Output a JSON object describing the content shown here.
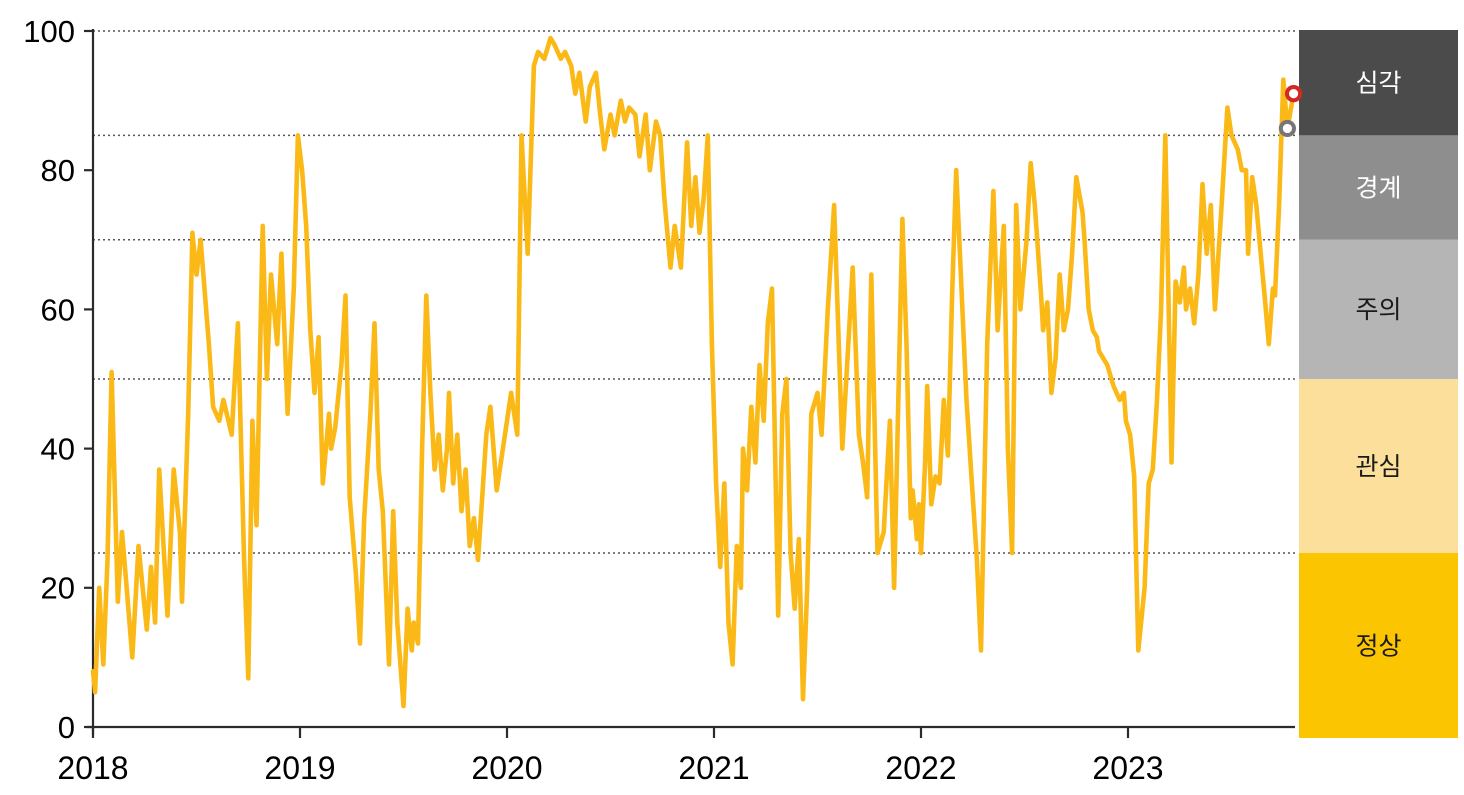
{
  "page": {
    "background": "#ffffff"
  },
  "chart_data": {
    "type": "line",
    "title": "",
    "x_axis": {
      "label": "",
      "ticks": [
        "2018",
        "2019",
        "2020",
        "2021",
        "2022",
        "2023"
      ],
      "tick_years": [
        2018,
        2019,
        2020,
        2021,
        2022,
        2023
      ],
      "range": [
        2018.0,
        2023.92
      ]
    },
    "y_axis": {
      "label": "",
      "ticks": [
        "0",
        "20",
        "40",
        "60",
        "80",
        "100"
      ],
      "tick_values": [
        0,
        20,
        40,
        60,
        80,
        100
      ],
      "range": [
        0,
        100
      ],
      "grid": "dotted"
    },
    "gridline_values": [
      25,
      50,
      70,
      85,
      100
    ],
    "axis_color": "#2b2b2b",
    "gridline_color": "#555555",
    "legend_position": "right-band",
    "alert_zones": [
      {
        "label": "심각",
        "min": 85,
        "max": 100,
        "color": "#4b4b4b",
        "text_color": "#ffffff"
      },
      {
        "label": "경계",
        "min": 70,
        "max": 85,
        "color": "#8e8e8e",
        "text_color": "#ffffff"
      },
      {
        "label": "주의",
        "min": 50,
        "max": 70,
        "color": "#b5b5b5",
        "text_color": "#1a1a1a"
      },
      {
        "label": "관심",
        "min": 25,
        "max": 50,
        "color": "#fbdf9b",
        "text_color": "#1a1a1a"
      },
      {
        "label": "정상",
        "min": 0,
        "max": 25,
        "color": "#fcc502",
        "text_color": "#1a1a1a"
      }
    ],
    "series": [
      {
        "name": "index",
        "color": "#fbb917",
        "points": [
          [
            2018.0,
            8
          ],
          [
            2018.01,
            5
          ],
          [
            2018.03,
            20
          ],
          [
            2018.05,
            9
          ],
          [
            2018.07,
            24
          ],
          [
            2018.09,
            51
          ],
          [
            2018.12,
            18
          ],
          [
            2018.14,
            28
          ],
          [
            2018.16,
            21
          ],
          [
            2018.19,
            10
          ],
          [
            2018.22,
            26
          ],
          [
            2018.26,
            14
          ],
          [
            2018.28,
            23
          ],
          [
            2018.3,
            15
          ],
          [
            2018.32,
            37
          ],
          [
            2018.36,
            16
          ],
          [
            2018.39,
            37
          ],
          [
            2018.42,
            28
          ],
          [
            2018.43,
            18
          ],
          [
            2018.46,
            45
          ],
          [
            2018.48,
            71
          ],
          [
            2018.5,
            65
          ],
          [
            2018.52,
            70
          ],
          [
            2018.56,
            55
          ],
          [
            2018.58,
            46
          ],
          [
            2018.61,
            44
          ],
          [
            2018.63,
            47
          ],
          [
            2018.67,
            42
          ],
          [
            2018.7,
            58
          ],
          [
            2018.73,
            24
          ],
          [
            2018.75,
            7
          ],
          [
            2018.77,
            44
          ],
          [
            2018.79,
            29
          ],
          [
            2018.82,
            72
          ],
          [
            2018.84,
            50
          ],
          [
            2018.86,
            65
          ],
          [
            2018.89,
            55
          ],
          [
            2018.91,
            68
          ],
          [
            2018.94,
            45
          ],
          [
            2018.97,
            63
          ],
          [
            2018.99,
            85
          ],
          [
            2019.01,
            80
          ],
          [
            2019.03,
            72
          ],
          [
            2019.05,
            57
          ],
          [
            2019.07,
            48
          ],
          [
            2019.09,
            56
          ],
          [
            2019.11,
            35
          ],
          [
            2019.14,
            45
          ],
          [
            2019.15,
            40
          ],
          [
            2019.17,
            43
          ],
          [
            2019.2,
            52
          ],
          [
            2019.22,
            62
          ],
          [
            2019.24,
            33
          ],
          [
            2019.27,
            22
          ],
          [
            2019.29,
            12
          ],
          [
            2019.31,
            30
          ],
          [
            2019.34,
            45
          ],
          [
            2019.36,
            58
          ],
          [
            2019.38,
            37
          ],
          [
            2019.4,
            31
          ],
          [
            2019.43,
            9
          ],
          [
            2019.45,
            31
          ],
          [
            2019.47,
            15
          ],
          [
            2019.5,
            3
          ],
          [
            2019.52,
            17
          ],
          [
            2019.54,
            11
          ],
          [
            2019.55,
            15
          ],
          [
            2019.57,
            12
          ],
          [
            2019.59,
            40
          ],
          [
            2019.61,
            62
          ],
          [
            2019.63,
            48
          ],
          [
            2019.65,
            37
          ],
          [
            2019.67,
            42
          ],
          [
            2019.69,
            34
          ],
          [
            2019.71,
            40
          ],
          [
            2019.72,
            48
          ],
          [
            2019.74,
            35
          ],
          [
            2019.76,
            42
          ],
          [
            2019.78,
            31
          ],
          [
            2019.8,
            37
          ],
          [
            2019.82,
            26
          ],
          [
            2019.84,
            30
          ],
          [
            2019.86,
            24
          ],
          [
            2019.88,
            33
          ],
          [
            2019.9,
            42
          ],
          [
            2019.92,
            46
          ],
          [
            2019.95,
            34
          ],
          [
            2019.98,
            40
          ],
          [
            2020.0,
            44
          ],
          [
            2020.02,
            48
          ],
          [
            2020.05,
            42
          ],
          [
            2020.07,
            85
          ],
          [
            2020.1,
            68
          ],
          [
            2020.13,
            95
          ],
          [
            2020.15,
            97
          ],
          [
            2020.18,
            96
          ],
          [
            2020.21,
            99
          ],
          [
            2020.23,
            98
          ],
          [
            2020.26,
            96
          ],
          [
            2020.28,
            97
          ],
          [
            2020.31,
            95
          ],
          [
            2020.33,
            91
          ],
          [
            2020.35,
            94
          ],
          [
            2020.38,
            87
          ],
          [
            2020.4,
            92
          ],
          [
            2020.43,
            94
          ],
          [
            2020.45,
            88
          ],
          [
            2020.47,
            83
          ],
          [
            2020.5,
            88
          ],
          [
            2020.52,
            85
          ],
          [
            2020.55,
            90
          ],
          [
            2020.57,
            87
          ],
          [
            2020.59,
            89
          ],
          [
            2020.62,
            88
          ],
          [
            2020.64,
            82
          ],
          [
            2020.67,
            88
          ],
          [
            2020.69,
            80
          ],
          [
            2020.72,
            87
          ],
          [
            2020.74,
            85
          ],
          [
            2020.76,
            76
          ],
          [
            2020.79,
            66
          ],
          [
            2020.81,
            72
          ],
          [
            2020.84,
            66
          ],
          [
            2020.87,
            84
          ],
          [
            2020.89,
            72
          ],
          [
            2020.91,
            79
          ],
          [
            2020.93,
            71
          ],
          [
            2020.95,
            76
          ],
          [
            2020.97,
            85
          ],
          [
            2020.99,
            55
          ],
          [
            2021.01,
            35
          ],
          [
            2021.03,
            23
          ],
          [
            2021.05,
            35
          ],
          [
            2021.07,
            15
          ],
          [
            2021.09,
            9
          ],
          [
            2021.11,
            26
          ],
          [
            2021.13,
            20
          ],
          [
            2021.14,
            40
          ],
          [
            2021.16,
            34
          ],
          [
            2021.18,
            46
          ],
          [
            2021.2,
            38
          ],
          [
            2021.22,
            52
          ],
          [
            2021.24,
            44
          ],
          [
            2021.26,
            58
          ],
          [
            2021.28,
            63
          ],
          [
            2021.31,
            16
          ],
          [
            2021.33,
            45
          ],
          [
            2021.35,
            50
          ],
          [
            2021.37,
            25
          ],
          [
            2021.39,
            17
          ],
          [
            2021.41,
            27
          ],
          [
            2021.43,
            4
          ],
          [
            2021.45,
            20
          ],
          [
            2021.47,
            45
          ],
          [
            2021.5,
            48
          ],
          [
            2021.52,
            42
          ],
          [
            2021.55,
            60
          ],
          [
            2021.58,
            75
          ],
          [
            2021.62,
            40
          ],
          [
            2021.67,
            66
          ],
          [
            2021.7,
            42
          ],
          [
            2021.72,
            38
          ],
          [
            2021.74,
            33
          ],
          [
            2021.76,
            65
          ],
          [
            2021.79,
            25
          ],
          [
            2021.82,
            28
          ],
          [
            2021.85,
            44
          ],
          [
            2021.87,
            20
          ],
          [
            2021.91,
            73
          ],
          [
            2021.93,
            55
          ],
          [
            2021.95,
            30
          ],
          [
            2021.96,
            34
          ],
          [
            2021.98,
            27
          ],
          [
            2021.99,
            32
          ],
          [
            2022.0,
            25
          ],
          [
            2022.02,
            38
          ],
          [
            2022.03,
            49
          ],
          [
            2022.05,
            32
          ],
          [
            2022.07,
            36
          ],
          [
            2022.09,
            35
          ],
          [
            2022.11,
            47
          ],
          [
            2022.13,
            39
          ],
          [
            2022.15,
            62
          ],
          [
            2022.17,
            80
          ],
          [
            2022.2,
            60
          ],
          [
            2022.22,
            47
          ],
          [
            2022.25,
            33
          ],
          [
            2022.27,
            24
          ],
          [
            2022.29,
            11
          ],
          [
            2022.32,
            55
          ],
          [
            2022.35,
            77
          ],
          [
            2022.37,
            57
          ],
          [
            2022.4,
            72
          ],
          [
            2022.42,
            40
          ],
          [
            2022.44,
            25
          ],
          [
            2022.46,
            75
          ],
          [
            2022.48,
            60
          ],
          [
            2022.51,
            70
          ],
          [
            2022.53,
            81
          ],
          [
            2022.55,
            75
          ],
          [
            2022.58,
            62
          ],
          [
            2022.59,
            57
          ],
          [
            2022.61,
            61
          ],
          [
            2022.63,
            48
          ],
          [
            2022.65,
            53
          ],
          [
            2022.67,
            65
          ],
          [
            2022.69,
            57
          ],
          [
            2022.71,
            60
          ],
          [
            2022.73,
            68
          ],
          [
            2022.75,
            79
          ],
          [
            2022.78,
            74
          ],
          [
            2022.79,
            70
          ],
          [
            2022.81,
            60
          ],
          [
            2022.83,
            57
          ],
          [
            2022.85,
            56
          ],
          [
            2022.86,
            54
          ],
          [
            2022.9,
            52
          ],
          [
            2022.93,
            49
          ],
          [
            2022.96,
            47
          ],
          [
            2022.98,
            48
          ],
          [
            2022.99,
            44
          ],
          [
            2023.01,
            42
          ],
          [
            2023.03,
            36
          ],
          [
            2023.05,
            11
          ],
          [
            2023.08,
            20
          ],
          [
            2023.1,
            35
          ],
          [
            2023.12,
            37
          ],
          [
            2023.14,
            47
          ],
          [
            2023.16,
            60
          ],
          [
            2023.18,
            85
          ],
          [
            2023.2,
            55
          ],
          [
            2023.21,
            38
          ],
          [
            2023.23,
            64
          ],
          [
            2023.25,
            61
          ],
          [
            2023.27,
            66
          ],
          [
            2023.28,
            60
          ],
          [
            2023.3,
            63
          ],
          [
            2023.32,
            58
          ],
          [
            2023.34,
            65
          ],
          [
            2023.36,
            78
          ],
          [
            2023.38,
            68
          ],
          [
            2023.4,
            75
          ],
          [
            2023.42,
            60
          ],
          [
            2023.45,
            74
          ],
          [
            2023.48,
            89
          ],
          [
            2023.5,
            85
          ],
          [
            2023.53,
            83
          ],
          [
            2023.55,
            80
          ],
          [
            2023.57,
            80
          ],
          [
            2023.58,
            68
          ],
          [
            2023.6,
            79
          ],
          [
            2023.62,
            75
          ],
          [
            2023.65,
            65
          ],
          [
            2023.66,
            62
          ],
          [
            2023.68,
            55
          ],
          [
            2023.7,
            63
          ],
          [
            2023.71,
            62
          ],
          [
            2023.73,
            75
          ],
          [
            2023.75,
            93
          ],
          [
            2023.77,
            86
          ],
          [
            2023.8,
            91
          ]
        ]
      }
    ],
    "markers": [
      {
        "name": "previous-value-marker",
        "year": 2023.77,
        "value": 86,
        "stroke": "#767676",
        "fill": "#ffffff"
      },
      {
        "name": "latest-value-marker",
        "year": 2023.8,
        "value": 91,
        "stroke": "#d02a23",
        "fill": "#ffffff"
      }
    ]
  }
}
